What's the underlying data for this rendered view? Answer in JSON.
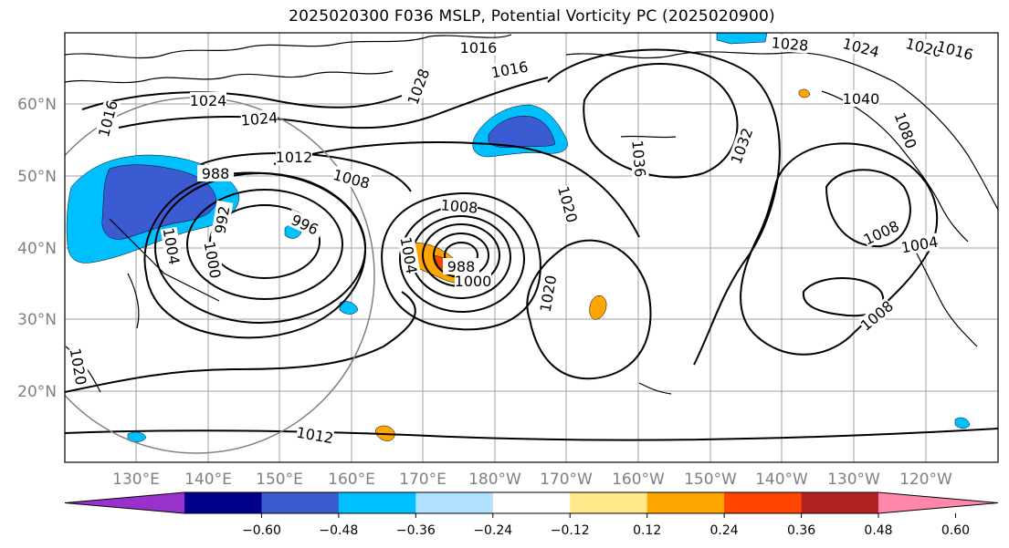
{
  "title": "2025020300 F036 MSLP, Potential Vorticity PC (2025020900)",
  "map": {
    "lat_labels": [
      "60°N",
      "50°N",
      "40°N",
      "30°N",
      "20°N"
    ],
    "lon_labels": [
      "130°E",
      "140°E",
      "150°E",
      "160°E",
      "170°E",
      "180°W",
      "170°W",
      "160°W",
      "150°W",
      "140°W",
      "130°W",
      "120°W"
    ],
    "isobar_labels": [
      "1016",
      "1024",
      "1024",
      "1028",
      "1016",
      "1016",
      "1012",
      "1008",
      "988",
      "992",
      "996",
      "1000",
      "1004",
      "1008",
      "1004",
      "988",
      "1000",
      "1020",
      "1020",
      "1036",
      "1032",
      "1028",
      "1024",
      "1020",
      "1016",
      "1040",
      "1080",
      "1008",
      "1004",
      "1008",
      "1012",
      "1020"
    ]
  },
  "colorbar": {
    "ticks": [
      "−0.60",
      "−0.48",
      "−0.36",
      "−0.24",
      "−0.12",
      "0.12",
      "0.24",
      "0.36",
      "0.48",
      "0.60"
    ],
    "colors": [
      "#9932cc",
      "#00008b",
      "#3a5bd1",
      "#00bfff",
      "#b0e2ff",
      "#ffffff",
      "#ffe88a",
      "#ffa500",
      "#ff4500",
      "#b22222",
      "#ff88aa"
    ]
  }
}
